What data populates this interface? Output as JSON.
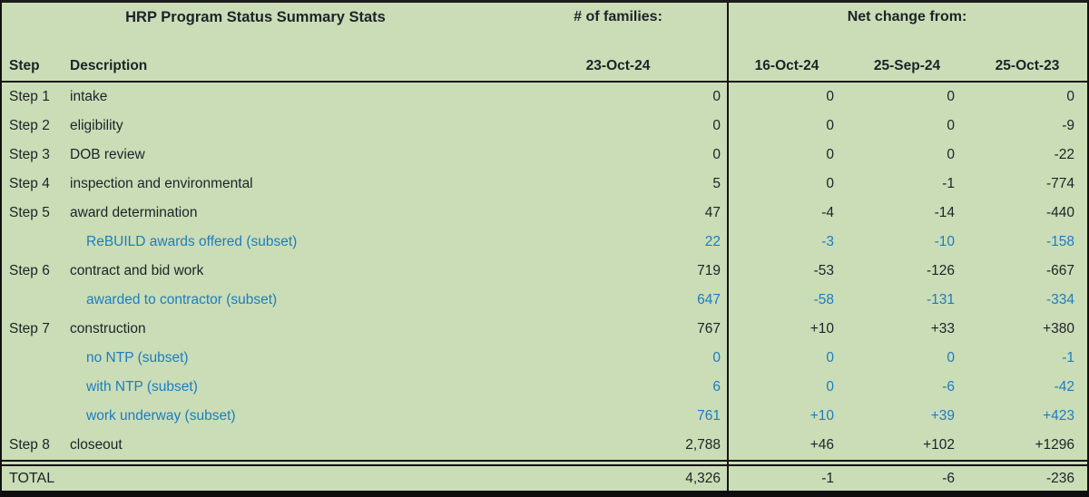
{
  "header": {
    "title": "HRP Program Status Summary Stats",
    "families_label": "# of families:",
    "net_change_label": "Net change from:",
    "col_step": "Step",
    "col_description": "Description",
    "col_families_date": "23-Oct-24",
    "net_dates": [
      "16-Oct-24",
      "25-Sep-24",
      "25-Oct-23"
    ]
  },
  "rows": [
    {
      "step": "Step 1",
      "description": "intake",
      "families": "0",
      "net": [
        "0",
        "0",
        "0"
      ],
      "subset": false
    },
    {
      "step": "Step 2",
      "description": "eligibility",
      "families": "0",
      "net": [
        "0",
        "0",
        "-9"
      ],
      "subset": false
    },
    {
      "step": "Step 3",
      "description": "DOB review",
      "families": "0",
      "net": [
        "0",
        "0",
        "-22"
      ],
      "subset": false
    },
    {
      "step": "Step 4",
      "description": "inspection and environmental",
      "families": "5",
      "net": [
        "0",
        "-1",
        "-774"
      ],
      "subset": false
    },
    {
      "step": "Step 5",
      "description": "award determination",
      "families": "47",
      "net": [
        "-4",
        "-14",
        "-440"
      ],
      "subset": false
    },
    {
      "step": "",
      "description": "ReBUILD awards offered (subset)",
      "families": "22",
      "net": [
        "-3",
        "-10",
        "-158"
      ],
      "subset": true
    },
    {
      "step": "Step 6",
      "description": "contract and bid work",
      "families": "719",
      "net": [
        "-53",
        "-126",
        "-667"
      ],
      "subset": false
    },
    {
      "step": "",
      "description": "awarded to contractor (subset)",
      "families": "647",
      "net": [
        "-58",
        "-131",
        "-334"
      ],
      "subset": true
    },
    {
      "step": "Step 7",
      "description": "construction",
      "families": "767",
      "net": [
        "+10",
        "+33",
        "+380"
      ],
      "subset": false
    },
    {
      "step": "",
      "description": "no NTP (subset)",
      "families": "0",
      "net": [
        "0",
        "0",
        "-1"
      ],
      "subset": true
    },
    {
      "step": "",
      "description": "with NTP (subset)",
      "families": "6",
      "net": [
        "0",
        "-6",
        "-42"
      ],
      "subset": true
    },
    {
      "step": "",
      "description": "work underway (subset)",
      "families": "761",
      "net": [
        "+10",
        "+39",
        "+423"
      ],
      "subset": true
    },
    {
      "step": "Step 8",
      "description": "closeout",
      "families": "2,788",
      "net": [
        "+46",
        "+102",
        "+1296"
      ],
      "subset": false
    }
  ],
  "total": {
    "label": "TOTAL",
    "families": "4,326",
    "net": [
      "-1",
      "-6",
      "-236"
    ]
  },
  "colors": {
    "background": "#caddb6",
    "text": "#1d2329",
    "subset_blue": "#1e7cc1",
    "border": "#141414"
  }
}
